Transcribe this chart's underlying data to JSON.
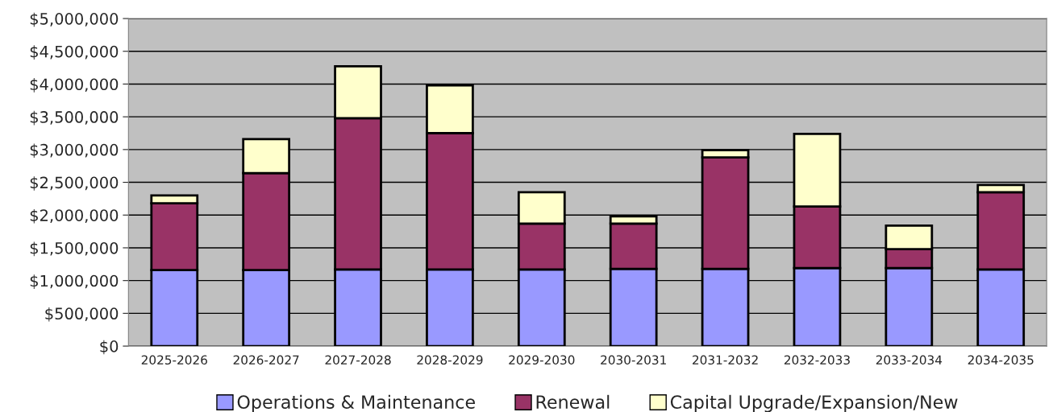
{
  "chart_data": {
    "type": "bar",
    "stacked": true,
    "categories": [
      "2025-2026",
      "2026-2027",
      "2027-2028",
      "2028-2029",
      "2029-2030",
      "2030-2031",
      "2031-2032",
      "2032-2033",
      "2033-2034",
      "2034-2035"
    ],
    "series": [
      {
        "name": "Operations & Maintenance",
        "color": "#9999ff",
        "values": [
          1160000,
          1160000,
          1170000,
          1170000,
          1170000,
          1180000,
          1180000,
          1190000,
          1190000,
          1170000
        ]
      },
      {
        "name": "Renewal",
        "color": "#993366",
        "values": [
          1020000,
          1480000,
          2310000,
          2080000,
          700000,
          690000,
          1700000,
          940000,
          290000,
          1180000
        ]
      },
      {
        "name": "Capital Upgrade/Expansion/New",
        "color": "#ffffcc",
        "values": [
          120000,
          520000,
          790000,
          730000,
          480000,
          110000,
          110000,
          1110000,
          360000,
          110000
        ]
      }
    ],
    "ylim": [
      0,
      5000000
    ],
    "yticks": [
      {
        "value": 0,
        "label": "$0"
      },
      {
        "value": 500000,
        "label": "$500,000"
      },
      {
        "value": 1000000,
        "label": "$1,000,000"
      },
      {
        "value": 1500000,
        "label": "$1,500,000"
      },
      {
        "value": 2000000,
        "label": "$2,000,000"
      },
      {
        "value": 2500000,
        "label": "$2,500,000"
      },
      {
        "value": 3000000,
        "label": "$3,000,000"
      },
      {
        "value": 3500000,
        "label": "$3,500,000"
      },
      {
        "value": 4000000,
        "label": "$4,000,000"
      },
      {
        "value": 4500000,
        "label": "$4,500,000"
      },
      {
        "value": 5000000,
        "label": "$5,000,000"
      }
    ],
    "grid": "y",
    "legend": "bottom"
  }
}
